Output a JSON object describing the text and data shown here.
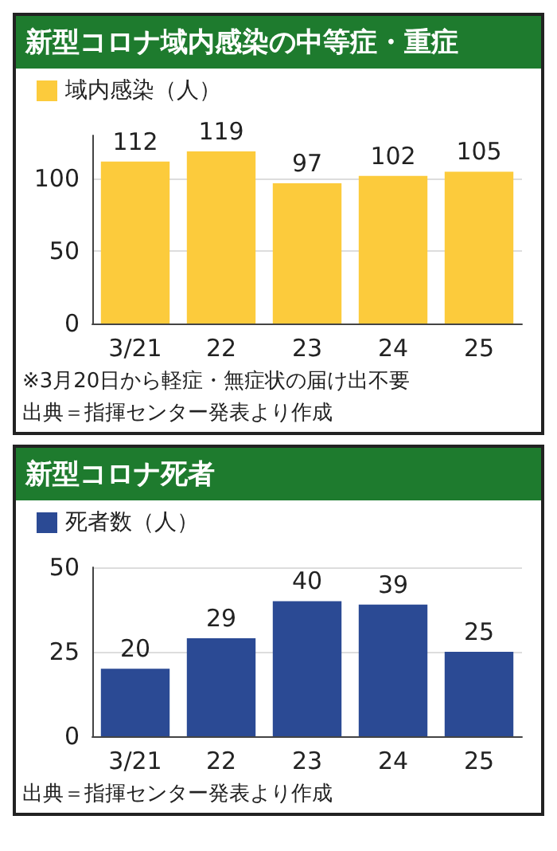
{
  "chart_data": [
    {
      "type": "bar",
      "title": "新型コロナ域内感染の中等症・重症",
      "categories": [
        "3/21",
        "22",
        "23",
        "24",
        "25"
      ],
      "series": [
        {
          "name": "域内感染（人）",
          "color": "#fccb3c",
          "values": [
            112,
            119,
            97,
            102,
            105
          ]
        }
      ],
      "ylim": [
        0,
        130
      ],
      "yticks": [
        0,
        50,
        100
      ],
      "grid": "y",
      "legend": "top left",
      "data_labels": true,
      "annotations": [
        "※3月20日から軽症・無症状の届け出不要",
        "出典＝指揮センター発表より作成"
      ]
    },
    {
      "type": "bar",
      "title": "新型コロナ死者",
      "categories": [
        "3/21",
        "22",
        "23",
        "24",
        "25"
      ],
      "series": [
        {
          "name": "死者数（人）",
          "color": "#2b4a94",
          "values": [
            20,
            29,
            40,
            39,
            25
          ]
        }
      ],
      "ylim": [
        0,
        50
      ],
      "yticks": [
        0,
        25,
        50
      ],
      "grid": "y",
      "legend": "top left",
      "data_labels": true,
      "annotations": [
        "出典＝指揮センター発表より作成"
      ]
    }
  ]
}
